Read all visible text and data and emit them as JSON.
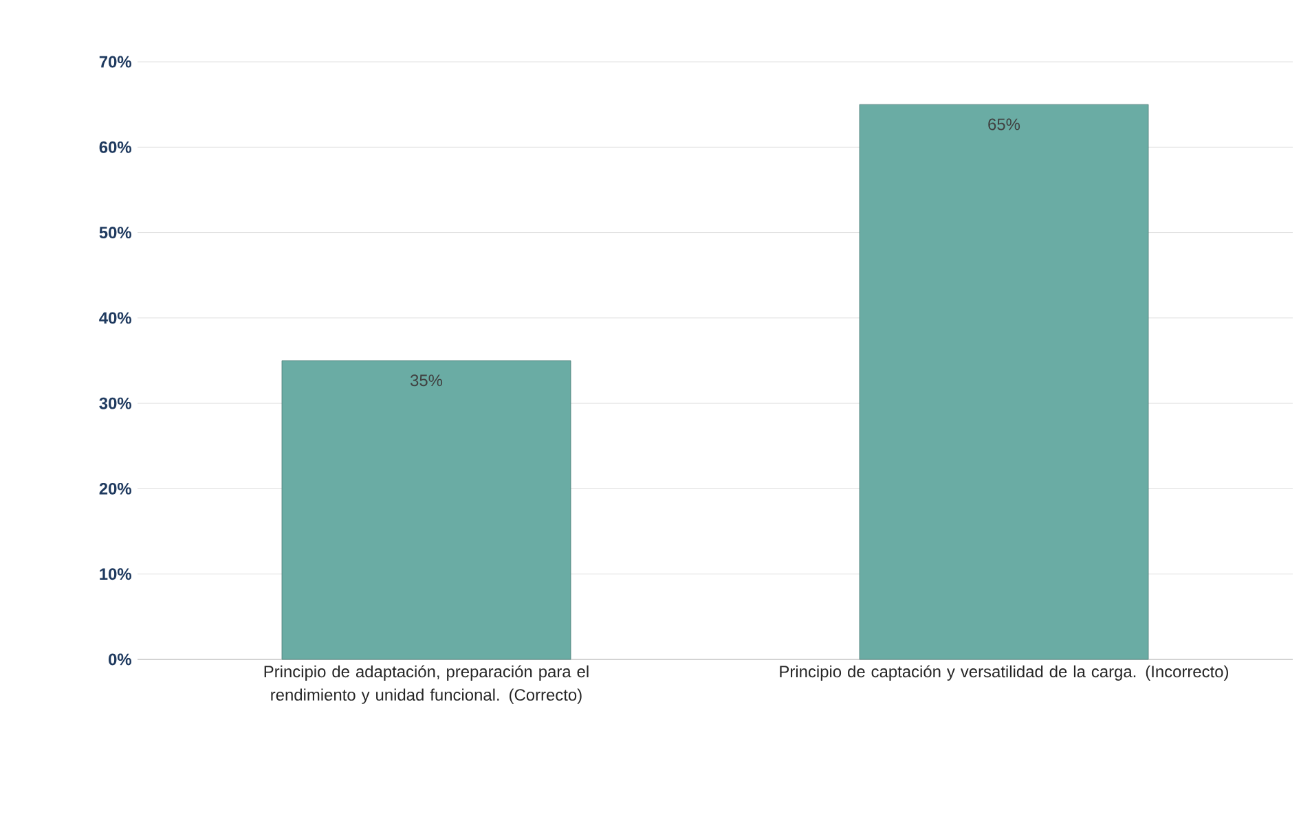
{
  "chart_data": {
    "type": "bar",
    "categories": [
      "Principio de adaptación, preparación para el rendimiento y unidad funcional. (Correcto)",
      "Principio de captación y versatilidad de la carga. (Incorrecto)"
    ],
    "values": [
      35,
      65
    ],
    "color": "#6aaca4",
    "value_labels": [
      "35%",
      "65%"
    ],
    "ylim": [
      0,
      70
    ],
    "yticks": [
      {
        "value": 0,
        "label": "0%"
      },
      {
        "value": 10,
        "label": "10%"
      },
      {
        "value": 20,
        "label": "20%"
      },
      {
        "value": 30,
        "label": "30%"
      },
      {
        "value": 40,
        "label": "40%"
      },
      {
        "value": 50,
        "label": "50%"
      },
      {
        "value": 60,
        "label": "60%"
      },
      {
        "value": 70,
        "label": "70%"
      }
    ],
    "grid": "y"
  }
}
